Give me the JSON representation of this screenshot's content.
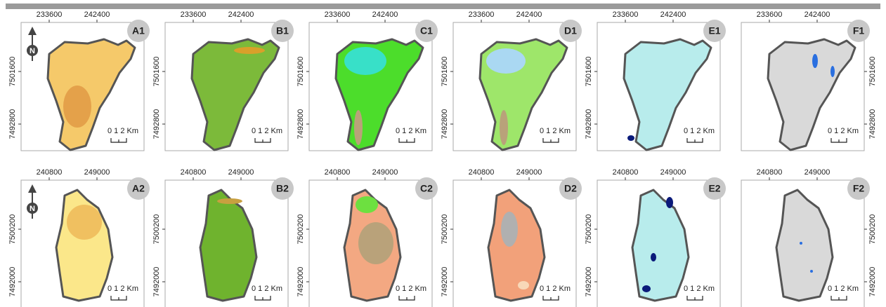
{
  "rows": [
    {
      "x_ticks": [
        "233600",
        "242400"
      ],
      "y_ticks": [
        "7501600",
        "7492800"
      ],
      "panels": [
        {
          "label": "A1",
          "scale": "0 1 2 Km",
          "north": "N"
        },
        {
          "label": "B1",
          "scale": "0 1 2 Km"
        },
        {
          "label": "C1",
          "scale": "0 1 2 Km"
        },
        {
          "label": "D1",
          "scale": "0 1 2 Km"
        },
        {
          "label": "E1",
          "scale": "0 1 2 Km"
        },
        {
          "label": "F1",
          "scale": "0 1 2 Km"
        }
      ]
    },
    {
      "x_ticks": [
        "240800",
        "249000"
      ],
      "y_ticks": [
        "7500200",
        "7492000"
      ],
      "panels": [
        {
          "label": "A2",
          "scale": "0 1 2 Km",
          "north": "N"
        },
        {
          "label": "B2",
          "scale": "0 1 2 Km"
        },
        {
          "label": "C2",
          "scale": "0 1 2 Km"
        },
        {
          "label": "D2",
          "scale": "0 1 2 Km"
        },
        {
          "label": "E2",
          "scale": "0 1 2 Km"
        },
        {
          "label": "F2",
          "scale": "0 1 2 Km"
        }
      ]
    }
  ]
}
